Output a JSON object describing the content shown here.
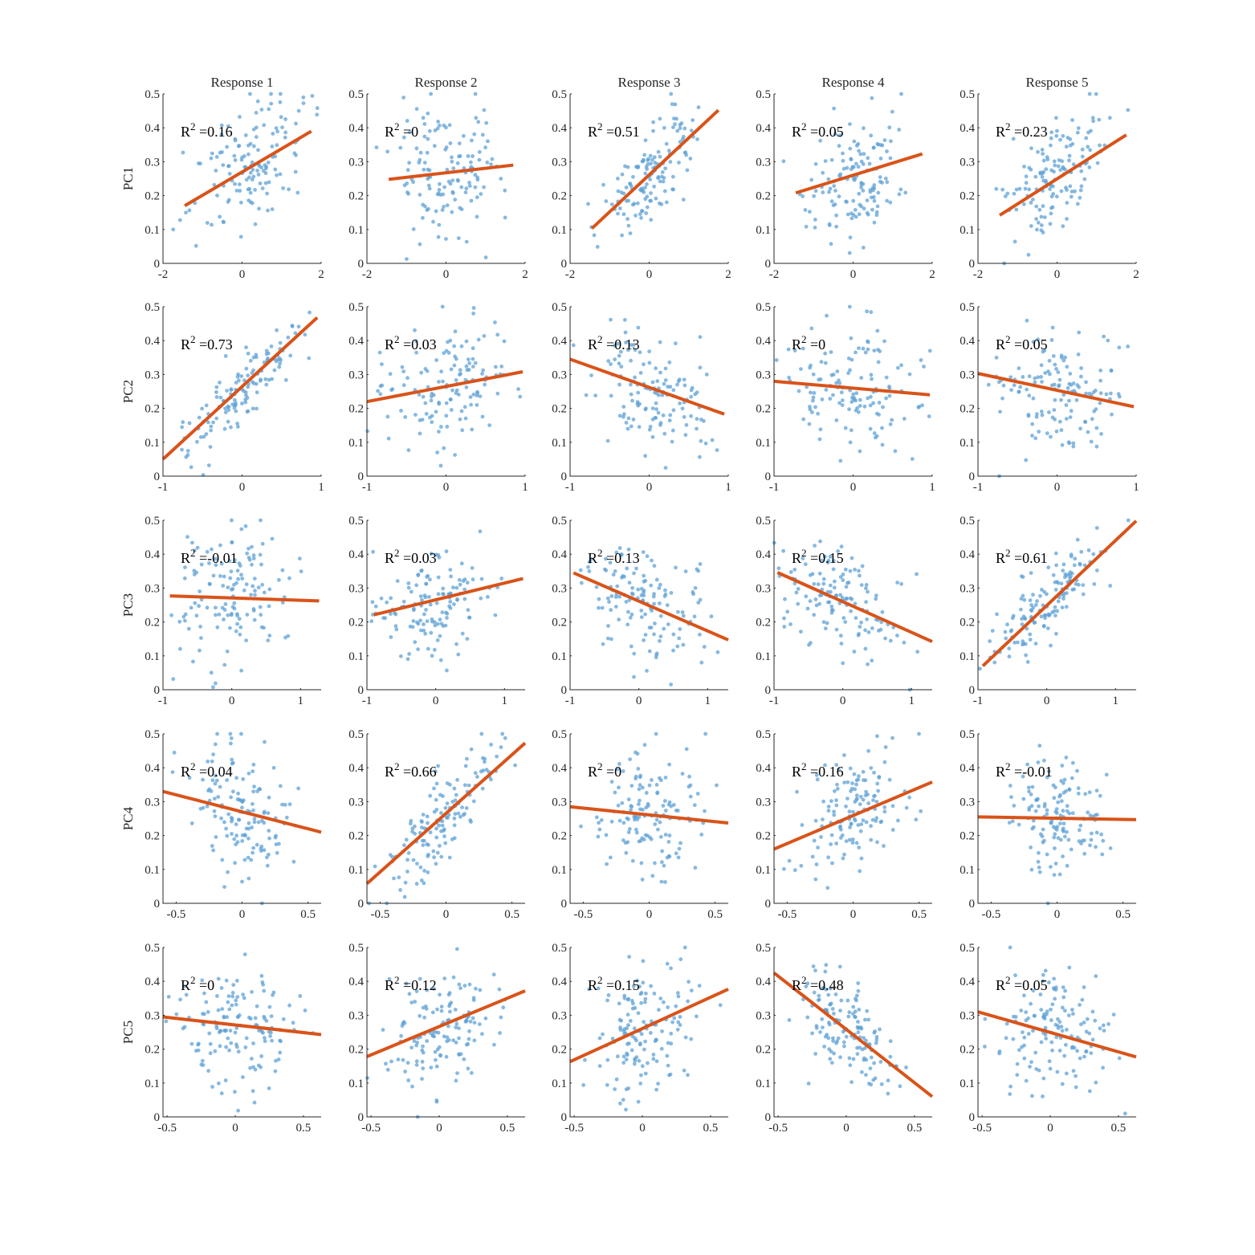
{
  "chart_data": {
    "type": "scatter",
    "layout": "grid-5x5",
    "columns": [
      "Response 1",
      "Response 2",
      "Response 3",
      "Response 4",
      "Response 5"
    ],
    "rows": [
      "PC1",
      "PC2",
      "PC3",
      "PC4",
      "PC5"
    ],
    "ylim": [
      0,
      0.5
    ],
    "yticks": [
      0,
      0.1,
      0.2,
      0.3,
      0.4,
      0.5
    ],
    "row_axes": [
      {
        "xlim": [
          -2,
          2
        ],
        "xticks": [
          -2,
          0,
          2
        ],
        "xtick_labels": [
          "-2",
          "0",
          "2"
        ]
      },
      {
        "xlim": [
          -1,
          1
        ],
        "xticks": [
          -1,
          0,
          1
        ],
        "xtick_labels": [
          "-1",
          "0",
          "1"
        ]
      },
      {
        "xlim": [
          -1,
          1.3
        ],
        "xticks": [
          -1,
          0,
          1
        ],
        "xtick_labels": [
          "-1",
          "0",
          "1"
        ]
      },
      {
        "xlim": [
          -0.6,
          0.6
        ],
        "xticks": [
          -0.5,
          0,
          0.5
        ],
        "xtick_labels": [
          "-0.5",
          "0",
          "0.5"
        ]
      },
      {
        "xlim": [
          -0.53,
          0.63
        ],
        "xticks": [
          -0.5,
          0,
          0.5
        ],
        "xtick_labels": [
          "-0.5",
          "0",
          "0.5"
        ]
      }
    ],
    "ytick_labels": [
      "0",
      "0.1",
      "0.2",
      "0.3",
      "0.4",
      "0.5"
    ],
    "panels": [
      [
        {
          "r2": "0.16",
          "fit": [
            [
              -1.45,
              0.17
            ],
            [
              1.75,
              0.39
            ]
          ],
          "center": [
            0.1,
            0.28
          ],
          "spread": [
            0.7,
            0.1
          ],
          "corr": 0.4
        },
        {
          "r2": "0",
          "fit": [
            [
              -1.45,
              0.248
            ],
            [
              1.7,
              0.29
            ]
          ],
          "center": [
            0.0,
            0.27
          ],
          "spread": [
            0.7,
            0.1
          ],
          "corr": 0.05
        },
        {
          "r2": "0.51",
          "fit": [
            [
              -1.45,
              0.103
            ],
            [
              1.75,
              0.452
            ]
          ],
          "center": [
            0.1,
            0.26
          ],
          "spread": [
            0.6,
            0.1
          ],
          "corr": 0.72
        },
        {
          "r2": "0.05",
          "fit": [
            [
              -1.45,
              0.208
            ],
            [
              1.75,
              0.323
            ]
          ],
          "center": [
            0.0,
            0.25
          ],
          "spread": [
            0.65,
            0.09
          ],
          "corr": 0.22
        },
        {
          "r2": "0.23",
          "fit": [
            [
              -1.45,
              0.142
            ],
            [
              1.75,
              0.379
            ]
          ],
          "center": [
            0.0,
            0.25
          ],
          "spread": [
            0.6,
            0.09
          ],
          "corr": 0.48
        }
      ],
      [
        {
          "r2": "0.73",
          "fit": [
            [
              -1.0,
              0.05
            ],
            [
              0.95,
              0.468
            ]
          ],
          "center": [
            0.05,
            0.27
          ],
          "spread": [
            0.4,
            0.1
          ],
          "corr": 0.86
        },
        {
          "r2": "0.03",
          "fit": [
            [
              -1.0,
              0.22
            ],
            [
              0.97,
              0.308
            ]
          ],
          "center": [
            0.0,
            0.27
          ],
          "spread": [
            0.45,
            0.09
          ],
          "corr": 0.18
        },
        {
          "r2": "0.13",
          "fit": [
            [
              -1.0,
              0.345
            ],
            [
              0.95,
              0.183
            ]
          ],
          "center": [
            0.0,
            0.26
          ],
          "spread": [
            0.45,
            0.1
          ],
          "corr": -0.36
        },
        {
          "r2": "0",
          "fit": [
            [
              -1.0,
              0.28
            ],
            [
              0.97,
              0.24
            ]
          ],
          "center": [
            0.0,
            0.26
          ],
          "spread": [
            0.45,
            0.09
          ],
          "corr": -0.05
        },
        {
          "r2": "0.05",
          "fit": [
            [
              -1.0,
              0.303
            ],
            [
              0.97,
              0.205
            ]
          ],
          "center": [
            0.0,
            0.26
          ],
          "spread": [
            0.45,
            0.09
          ],
          "corr": -0.22
        }
      ],
      [
        {
          "r2": "-0.01",
          "fit": [
            [
              -0.9,
              0.277
            ],
            [
              1.27,
              0.262
            ]
          ],
          "center": [
            0.0,
            0.27
          ],
          "spread": [
            0.45,
            0.1
          ],
          "corr": 0.0
        },
        {
          "r2": "0.03",
          "fit": [
            [
              -0.9,
              0.221
            ],
            [
              1.27,
              0.328
            ]
          ],
          "center": [
            0.0,
            0.26
          ],
          "spread": [
            0.45,
            0.09
          ],
          "corr": 0.18
        },
        {
          "r2": "0.13",
          "fit": [
            [
              -0.95,
              0.345
            ],
            [
              1.3,
              0.147
            ]
          ],
          "center": [
            0.0,
            0.26
          ],
          "spread": [
            0.45,
            0.09
          ],
          "corr": -0.36
        },
        {
          "r2": "0.15",
          "fit": [
            [
              -0.95,
              0.346
            ],
            [
              1.3,
              0.142
            ]
          ],
          "center": [
            0.0,
            0.26
          ],
          "spread": [
            0.45,
            0.09
          ],
          "corr": -0.39
        },
        {
          "r2": "0.61",
          "fit": [
            [
              -0.93,
              0.07
            ],
            [
              1.3,
              0.498
            ]
          ],
          "center": [
            0.0,
            0.26
          ],
          "spread": [
            0.4,
            0.09
          ],
          "corr": 0.78
        }
      ],
      [
        {
          "r2": "0.04",
          "fit": [
            [
              -0.6,
              0.33
            ],
            [
              0.6,
              0.21
            ]
          ],
          "center": [
            0.0,
            0.27
          ],
          "spread": [
            0.2,
            0.1
          ],
          "corr": -0.2
        },
        {
          "r2": "0.66",
          "fit": [
            [
              -0.6,
              0.058
            ],
            [
              0.6,
              0.473
            ]
          ],
          "center": [
            0.0,
            0.26
          ],
          "spread": [
            0.2,
            0.1
          ],
          "corr": 0.81
        },
        {
          "r2": "0",
          "fit": [
            [
              -0.6,
              0.285
            ],
            [
              0.6,
              0.237
            ]
          ],
          "center": [
            0.0,
            0.26
          ],
          "spread": [
            0.2,
            0.09
          ],
          "corr": -0.05
        },
        {
          "r2": "0.16",
          "fit": [
            [
              -0.6,
              0.16
            ],
            [
              0.6,
              0.358
            ]
          ],
          "center": [
            0.0,
            0.26
          ],
          "spread": [
            0.2,
            0.09
          ],
          "corr": 0.4
        },
        {
          "r2": "-0.01",
          "fit": [
            [
              -0.6,
              0.255
            ],
            [
              0.6,
              0.247
            ]
          ],
          "center": [
            0.0,
            0.25
          ],
          "spread": [
            0.2,
            0.09
          ],
          "corr": 0.0
        }
      ],
      [
        {
          "r2": "0",
          "fit": [
            [
              -0.53,
              0.295
            ],
            [
              0.63,
              0.243
            ]
          ],
          "center": [
            0.0,
            0.26
          ],
          "spread": [
            0.2,
            0.09
          ],
          "corr": -0.05
        },
        {
          "r2": "0.12",
          "fit": [
            [
              -0.53,
              0.178
            ],
            [
              0.63,
              0.372
            ]
          ],
          "center": [
            0.0,
            0.26
          ],
          "spread": [
            0.2,
            0.09
          ],
          "corr": 0.35
        },
        {
          "r2": "0.15",
          "fit": [
            [
              -0.53,
              0.163
            ],
            [
              0.63,
              0.377
            ]
          ],
          "center": [
            0.0,
            0.26
          ],
          "spread": [
            0.2,
            0.09
          ],
          "corr": 0.39
        },
        {
          "r2": "0.48",
          "fit": [
            [
              -0.53,
              0.425
            ],
            [
              0.63,
              0.06
            ]
          ],
          "center": [
            0.0,
            0.25
          ],
          "spread": [
            0.18,
            0.09
          ],
          "corr": -0.69
        },
        {
          "r2": "0.05",
          "fit": [
            [
              -0.53,
              0.31
            ],
            [
              0.63,
              0.177
            ]
          ],
          "center": [
            0.0,
            0.26
          ],
          "spread": [
            0.2,
            0.09
          ],
          "corr": -0.22
        }
      ]
    ]
  }
}
